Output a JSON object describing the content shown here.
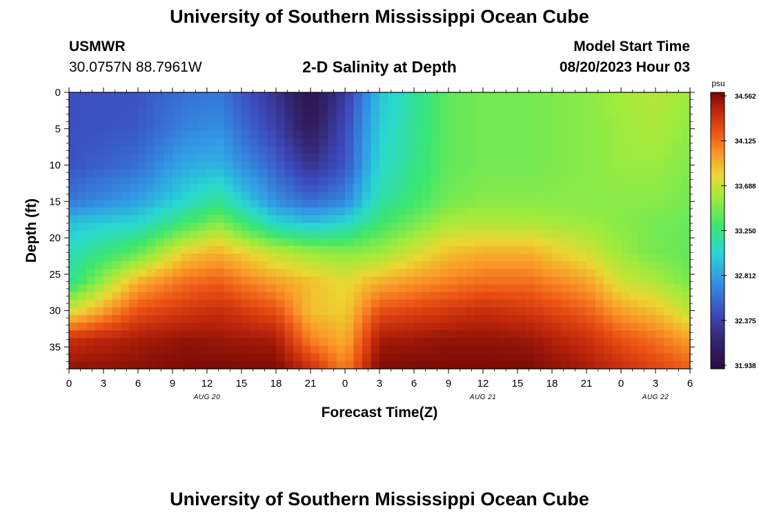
{
  "header": {
    "title": "University of Southern Mississippi Ocean Cube",
    "station_id": "USMWR",
    "station_coords": "30.0757N  88.7961W",
    "plot_title": "2-D Salinity at Depth",
    "model_start_label": "Model Start Time",
    "model_start_value": "08/20/2023 Hour 03"
  },
  "footer": {
    "title": "University of Southern Mississippi Ocean Cube"
  },
  "chart_data": {
    "type": "heatmap",
    "title": "2-D Salinity at Depth",
    "xlabel": "Forecast Time(Z)",
    "ylabel": "Depth (ft)",
    "x_hours_range": [
      0,
      54
    ],
    "x_tick_labels": [
      "0",
      "3",
      "6",
      "9",
      "12",
      "15",
      "18",
      "21",
      "0",
      "3",
      "6",
      "9",
      "12",
      "15",
      "18",
      "21",
      "0",
      "3",
      "6"
    ],
    "date_labels": [
      {
        "text": "AUG 20",
        "hour": 12
      },
      {
        "text": "AUG 21",
        "hour": 36
      },
      {
        "text": "AUG 22",
        "hour": 51
      }
    ],
    "y_range": [
      0,
      38
    ],
    "y_ticks": [
      0,
      5,
      10,
      15,
      20,
      25,
      30,
      35
    ],
    "colorbar": {
      "unit": "psu",
      "min": 31.938,
      "max": 34.562,
      "tick_labels": [
        "34.562",
        "34.125",
        "33.688",
        "33.250",
        "32.812",
        "32.375",
        "31.938"
      ]
    },
    "grid_columns": 72,
    "grid_rows": 36,
    "profiles": {
      "time_hours": [
        0,
        6,
        10,
        13,
        18,
        21,
        24,
        27,
        33,
        36,
        40,
        45,
        48,
        51,
        54
      ],
      "depth_ft": [
        0,
        5,
        10,
        15,
        18,
        22,
        26,
        30,
        34,
        38
      ],
      "values": [
        [
          32.48,
          32.48,
          32.5,
          32.65,
          32.95,
          33.1,
          33.2,
          33.7,
          34.35,
          34.5
        ],
        [
          32.5,
          32.52,
          32.62,
          32.82,
          33.05,
          33.4,
          33.9,
          34.2,
          34.45,
          34.52
        ],
        [
          32.62,
          32.7,
          32.85,
          33.05,
          33.3,
          33.8,
          34.1,
          34.3,
          34.5,
          34.55
        ],
        [
          32.66,
          32.75,
          32.9,
          33.2,
          33.5,
          33.9,
          34.15,
          34.35,
          34.48,
          34.55
        ],
        [
          32.3,
          32.4,
          32.55,
          32.75,
          33.05,
          33.65,
          33.95,
          34.2,
          34.45,
          34.55
        ],
        [
          32.0,
          32.1,
          32.3,
          32.6,
          32.95,
          33.55,
          33.85,
          33.85,
          34.05,
          34.35
        ],
        [
          32.35,
          32.45,
          32.5,
          32.72,
          33.05,
          33.5,
          33.75,
          33.8,
          33.9,
          34.05
        ],
        [
          32.95,
          33.0,
          33.05,
          33.15,
          33.3,
          33.55,
          33.9,
          34.2,
          34.45,
          34.55
        ],
        [
          33.4,
          33.4,
          33.4,
          33.45,
          33.6,
          33.85,
          34.05,
          34.3,
          34.5,
          34.55
        ],
        [
          33.45,
          33.45,
          33.45,
          33.5,
          33.62,
          33.9,
          34.1,
          34.35,
          34.5,
          34.55
        ],
        [
          33.45,
          33.45,
          33.45,
          33.5,
          33.6,
          33.9,
          34.1,
          34.3,
          34.48,
          34.55
        ],
        [
          33.5,
          33.5,
          33.5,
          33.5,
          33.55,
          33.7,
          33.95,
          34.15,
          34.35,
          34.45
        ],
        [
          33.58,
          33.55,
          33.55,
          33.5,
          33.5,
          33.55,
          33.7,
          33.95,
          34.2,
          34.35
        ],
        [
          33.62,
          33.6,
          33.55,
          33.5,
          33.45,
          33.45,
          33.6,
          33.85,
          34.1,
          34.25
        ],
        [
          33.55,
          33.52,
          33.48,
          33.45,
          33.42,
          33.4,
          33.45,
          33.65,
          33.95,
          34.15
        ]
      ]
    }
  }
}
